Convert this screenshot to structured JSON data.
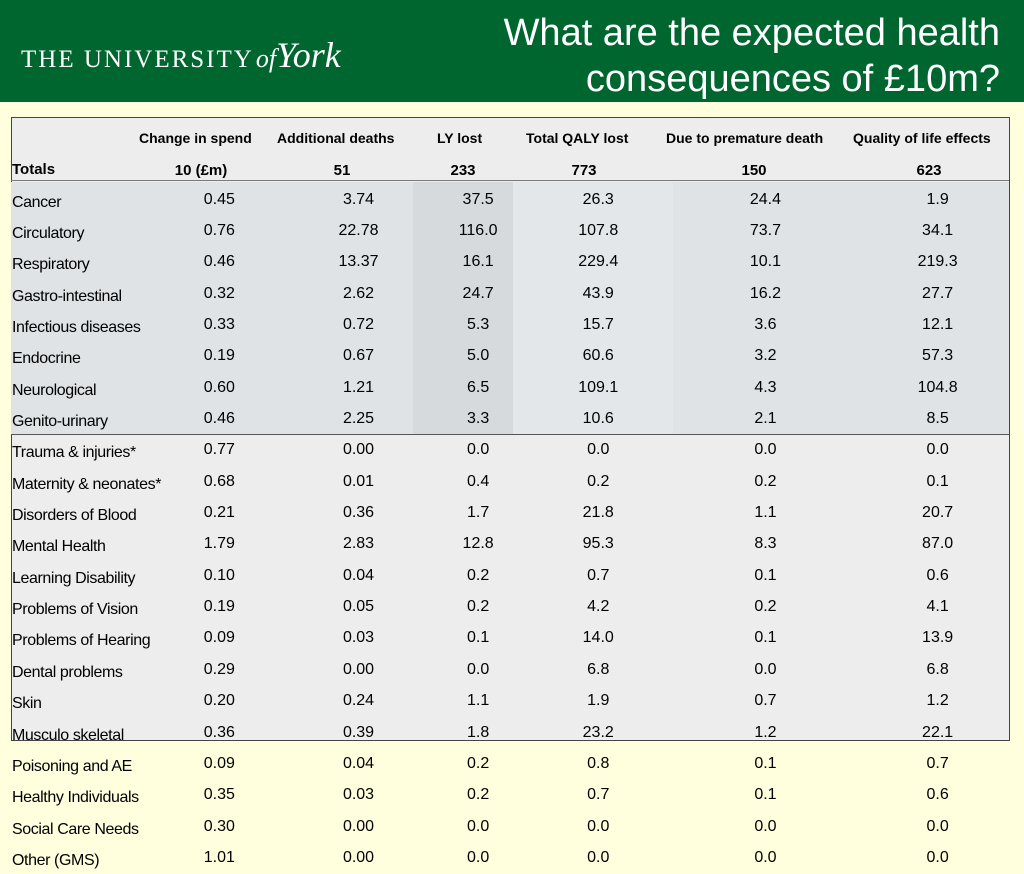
{
  "logo": {
    "the_university": "THE UNIVERSITY",
    "of": "of",
    "york": "York"
  },
  "title": "What are the expected health consequences of £10m?",
  "columns": [
    "Change in spend",
    "Additional deaths",
    "LY lost",
    "Total QALY lost",
    "Due to premature death",
    "Quality of life effects"
  ],
  "totals": {
    "label": "Totals",
    "values": [
      "10 (£m)",
      "51",
      "233",
      "773",
      "150",
      "623"
    ]
  },
  "rows": [
    {
      "label": "Cancer",
      "values": [
        "0.45",
        "3.74",
        "37.5",
        "26.3",
        "24.4",
        "1.9"
      ]
    },
    {
      "label": "Circulatory",
      "values": [
        "0.76",
        "22.78",
        "116.0",
        "107.8",
        "73.7",
        "34.1"
      ]
    },
    {
      "label": "Respiratory",
      "values": [
        "0.46",
        "13.37",
        "16.1",
        "229.4",
        "10.1",
        "219.3"
      ]
    },
    {
      "label": "Gastro-intestinal",
      "values": [
        "0.32",
        "2.62",
        "24.7",
        "43.9",
        "16.2",
        "27.7"
      ]
    },
    {
      "label": "Infectious diseases",
      "values": [
        "0.33",
        "0.72",
        "5.3",
        "15.7",
        "3.6",
        "12.1"
      ]
    },
    {
      "label": "Endocrine",
      "values": [
        "0.19",
        "0.67",
        "5.0",
        "60.6",
        "3.2",
        "57.3"
      ]
    },
    {
      "label": "Neurological",
      "values": [
        "0.60",
        "1.21",
        "6.5",
        "109.1",
        "4.3",
        "104.8"
      ]
    },
    {
      "label": "Genito-urinary",
      "values": [
        "0.46",
        "2.25",
        "3.3",
        "10.6",
        "2.1",
        "8.5"
      ]
    },
    {
      "label": "Trauma & injuries*",
      "values": [
        "0.77",
        "0.00",
        "0.0",
        "0.0",
        "0.0",
        "0.0"
      ]
    },
    {
      "label": "Maternity & neonates*",
      "values": [
        "0.68",
        "0.01",
        "0.4",
        "0.2",
        "0.2",
        "0.1"
      ]
    },
    {
      "label": "Disorders of Blood",
      "values": [
        "0.21",
        "0.36",
        "1.7",
        "21.8",
        "1.1",
        "20.7"
      ]
    },
    {
      "label": "Mental Health",
      "values": [
        "1.79",
        "2.83",
        "12.8",
        "95.3",
        "8.3",
        "87.0"
      ]
    },
    {
      "label": "Learning Disability",
      "values": [
        "0.10",
        "0.04",
        "0.2",
        "0.7",
        "0.1",
        "0.6"
      ]
    },
    {
      "label": "Problems of Vision",
      "values": [
        "0.19",
        "0.05",
        "0.2",
        "4.2",
        "0.2",
        "4.1"
      ]
    },
    {
      "label": "Problems of Hearing",
      "values": [
        "0.09",
        "0.03",
        "0.1",
        "14.0",
        "0.1",
        "13.9"
      ]
    },
    {
      "label": "Dental problems",
      "values": [
        "0.29",
        "0.00",
        "0.0",
        "6.8",
        "0.0",
        "6.8"
      ]
    },
    {
      "label": "Skin",
      "values": [
        "0.20",
        "0.24",
        "1.1",
        "1.9",
        "0.7",
        "1.2"
      ]
    },
    {
      "label": "Musculo skeletal",
      "values": [
        "0.36",
        "0.39",
        "1.8",
        "23.2",
        "1.2",
        "22.1"
      ]
    },
    {
      "label": "Poisoning and AE",
      "values": [
        "0.09",
        "0.04",
        "0.2",
        "0.8",
        "0.1",
        "0.7"
      ]
    },
    {
      "label": "Healthy Individuals",
      "values": [
        "0.35",
        "0.03",
        "0.2",
        "0.7",
        "0.1",
        "0.6"
      ]
    },
    {
      "label": "Social Care Needs",
      "values": [
        "0.30",
        "0.00",
        "0.0",
        "0.0",
        "0.0",
        "0.0"
      ]
    },
    {
      "label": "Other (GMS)",
      "values": [
        "1.01",
        "0.00",
        "0.0",
        "0.0",
        "0.0",
        "0.0"
      ]
    }
  ]
}
